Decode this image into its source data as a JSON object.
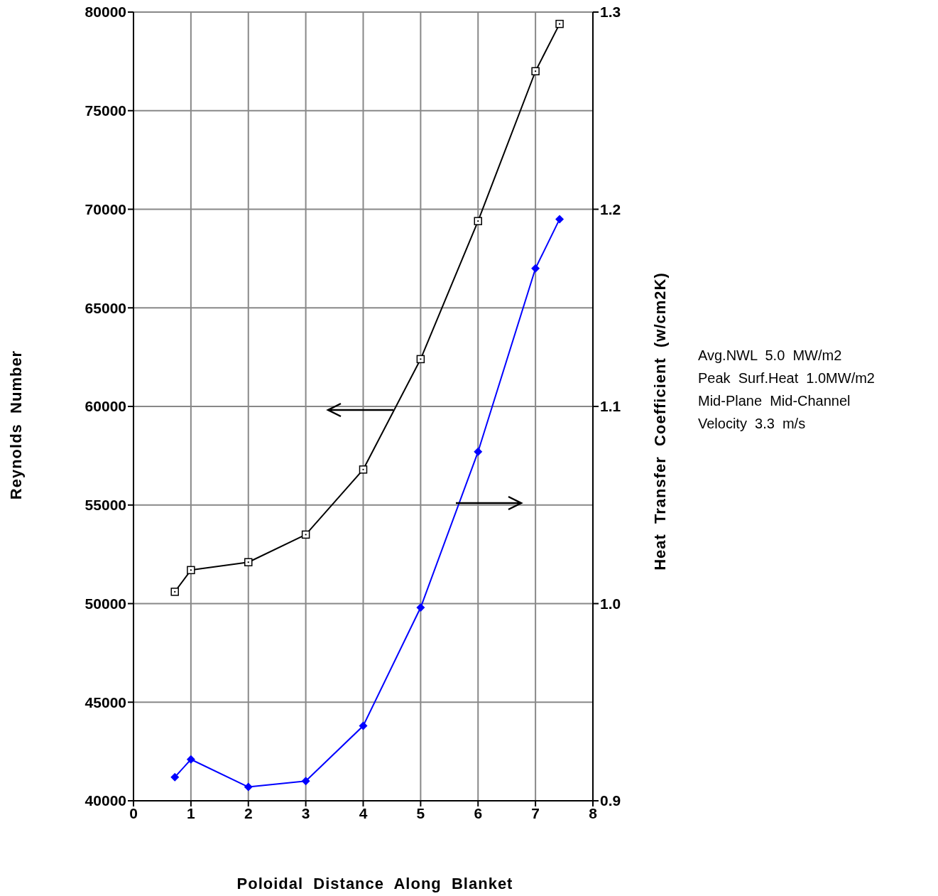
{
  "chart_data": {
    "type": "line",
    "xlabel": "Poloidal  Distance  Along  Blanket",
    "ylabel": "Reynolds  Number",
    "y2label": "Heat  Transfer  Coefficient  (w/cm2K)",
    "x": [
      0.72,
      1,
      2,
      3,
      4,
      5,
      6,
      7,
      7.42
    ],
    "series": [
      {
        "color": "#000000",
        "marker": "square",
        "values": [
          50600,
          51700,
          52100,
          53500,
          56800,
          62400,
          69400,
          77000,
          79400
        ]
      },
      {
        "color": "#0000ff",
        "marker": "diamond",
        "axis": "y2",
        "values": [
          0.912,
          0.921,
          0.907,
          0.91,
          0.938,
          0.998,
          1.077,
          1.17,
          1.195
        ]
      }
    ],
    "xlim": [
      0,
      8
    ],
    "xticks": [
      0,
      1,
      2,
      3,
      4,
      5,
      6,
      7,
      8
    ],
    "ylim": [
      40000,
      80000
    ],
    "yticks": [
      40000,
      45000,
      50000,
      55000,
      60000,
      65000,
      70000,
      75000,
      80000
    ],
    "y2lim": [
      0.9,
      1.3
    ],
    "y2ticks": [
      0.9,
      {
        "value": 1,
        "label": "1.0"
      },
      1.1,
      1.2,
      1.3
    ],
    "grid": true,
    "annotations": [
      "Avg.NWL  5.0  MW/m2",
      "Peak  Surf.Heat  1.0MW/m2",
      "Mid-Plane  Mid-Channel",
      "Velocity  3.3  m/s"
    ]
  }
}
